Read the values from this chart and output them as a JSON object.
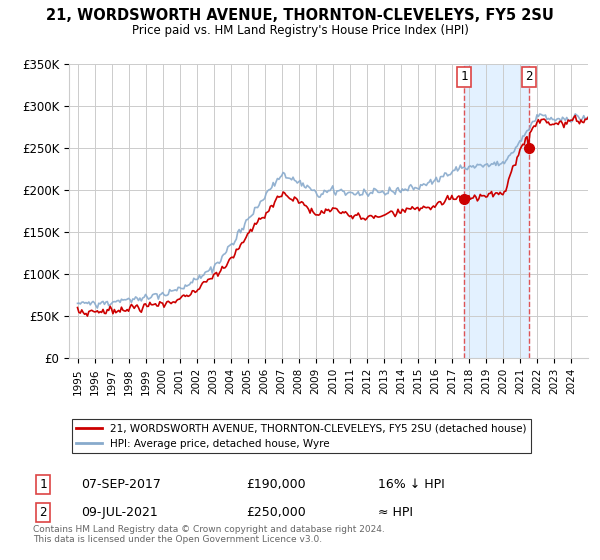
{
  "title": "21, WORDSWORTH AVENUE, THORNTON-CLEVELEYS, FY5 2SU",
  "subtitle": "Price paid vs. HM Land Registry's House Price Index (HPI)",
  "legend_line1": "21, WORDSWORTH AVENUE, THORNTON-CLEVELEYS, FY5 2SU (detached house)",
  "legend_line2": "HPI: Average price, detached house, Wyre",
  "sale1_date": 2017.7,
  "sale1_price": 190000,
  "sale1_label": "07-SEP-2017",
  "sale1_hpi_rel": "16% ↓ HPI",
  "sale2_date": 2021.52,
  "sale2_price": 250000,
  "sale2_label": "09-JUL-2021",
  "sale2_hpi_rel": "≈ HPI",
  "footer": "Contains HM Land Registry data © Crown copyright and database right 2024.\nThis data is licensed under the Open Government Licence v3.0.",
  "property_color": "#cc0000",
  "hpi_color": "#88aacc",
  "vline_color": "#dd4444",
  "highlight_bg": "#ddeeff",
  "ylim": [
    0,
    350000
  ],
  "xlim": [
    1994.5,
    2025.0
  ],
  "yticks": [
    0,
    50000,
    100000,
    150000,
    200000,
    250000,
    300000,
    350000
  ],
  "ytick_labels": [
    "£0",
    "£50K",
    "£100K",
    "£150K",
    "£200K",
    "£250K",
    "£300K",
    "£350K"
  ],
  "xticks": [
    1995,
    1996,
    1997,
    1998,
    1999,
    2000,
    2001,
    2002,
    2003,
    2004,
    2005,
    2006,
    2007,
    2008,
    2009,
    2010,
    2011,
    2012,
    2013,
    2014,
    2015,
    2016,
    2017,
    2018,
    2019,
    2020,
    2021,
    2022,
    2023,
    2024
  ],
  "hpi_anchors_years": [
    1995,
    1997,
    1999,
    2001,
    2002,
    2003,
    2004,
    2005,
    2006,
    2007,
    2008,
    2009,
    2010,
    2011,
    2012,
    2013,
    2014,
    2015,
    2016,
    2017,
    2018,
    2019,
    2020,
    2021,
    2022,
    2023,
    2024,
    2025
  ],
  "hpi_anchors_vals": [
    65000,
    68000,
    73000,
    82000,
    95000,
    110000,
    135000,
    165000,
    195000,
    220000,
    210000,
    195000,
    200000,
    198000,
    195000,
    197000,
    200000,
    205000,
    210000,
    225000,
    228000,
    230000,
    232000,
    258000,
    290000,
    285000,
    285000,
    288000
  ],
  "prop_anchors_years": [
    1995,
    1997,
    1999,
    2001,
    2002,
    2003,
    2004,
    2005,
    2006,
    2007,
    2008,
    2009,
    2010,
    2011,
    2012,
    2013,
    2014,
    2015,
    2016,
    2017,
    2018,
    2019,
    2020,
    2021,
    2022,
    2023,
    2024,
    2025
  ],
  "prop_anchors_vals": [
    55000,
    57000,
    62000,
    70000,
    82000,
    98000,
    118000,
    148000,
    172000,
    200000,
    185000,
    172000,
    178000,
    170000,
    168000,
    170000,
    175000,
    178000,
    182000,
    190000,
    192000,
    195000,
    195000,
    250000,
    285000,
    280000,
    282000,
    288000
  ]
}
